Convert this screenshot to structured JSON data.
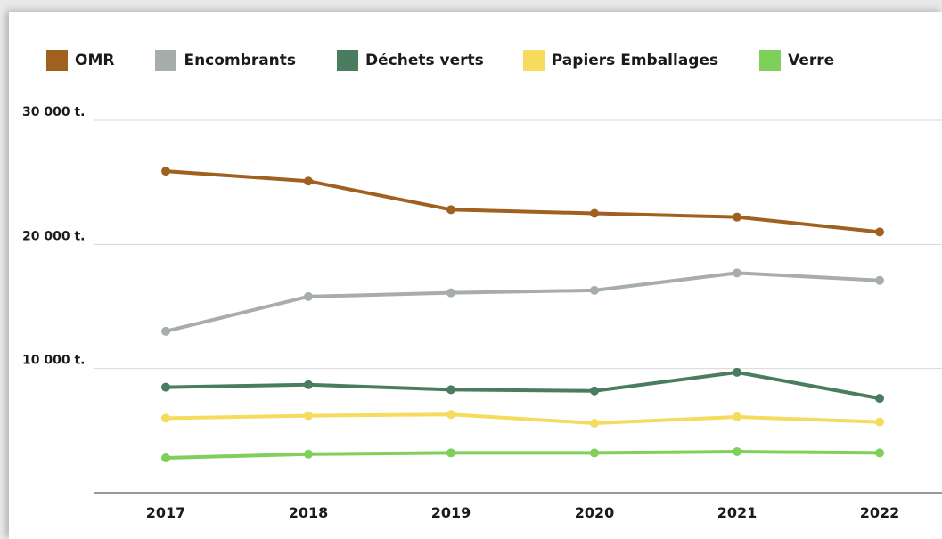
{
  "chart_data": {
    "type": "line",
    "title": "",
    "xlabel": "",
    "ylabel": "",
    "categories": [
      "2017",
      "2018",
      "2019",
      "2020",
      "2021",
      "2022"
    ],
    "ylim": [
      0,
      30000
    ],
    "y_ticks": [
      {
        "value": 30000,
        "label": "30 000 t."
      },
      {
        "value": 20000,
        "label": "20 000 t."
      },
      {
        "value": 10000,
        "label": "10 000 t."
      }
    ],
    "grid": true,
    "legend_position": "top",
    "series": [
      {
        "name": "OMR",
        "color": "#a0601f",
        "values": [
          25900,
          25100,
          22800,
          22500,
          22200,
          21000
        ]
      },
      {
        "name": "Encombrants",
        "color": "#a7adab",
        "values": [
          13000,
          15800,
          16100,
          16300,
          17700,
          17100
        ]
      },
      {
        "name": "Déchets verts",
        "color": "#4a7c60",
        "values": [
          8500,
          8700,
          8300,
          8200,
          9700,
          7600
        ]
      },
      {
        "name": "Papiers Emballages",
        "color": "#f5db5e",
        "values": [
          6000,
          6200,
          6300,
          5600,
          6100,
          5700
        ]
      },
      {
        "name": "Verre",
        "color": "#7fd05a",
        "values": [
          2800,
          3100,
          3200,
          3200,
          3300,
          3200
        ]
      }
    ]
  }
}
